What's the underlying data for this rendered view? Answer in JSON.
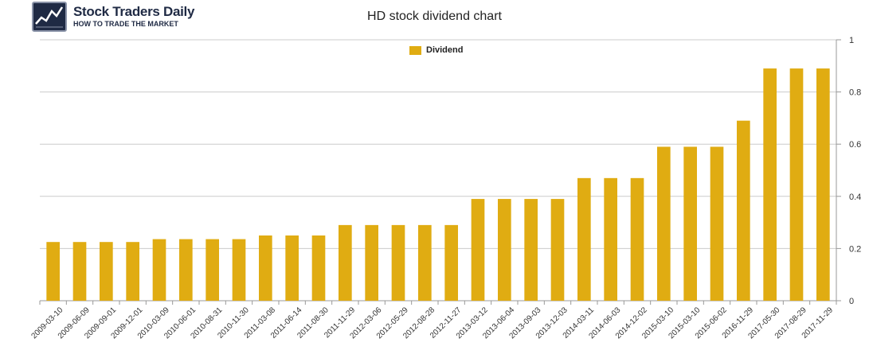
{
  "brand": {
    "name": "Stock Traders Daily",
    "tagline": "HOW TO TRADE THE MARKET"
  },
  "colors": {
    "bar": "#e0ac12",
    "grid": "#cccccc",
    "axis": "#999999"
  },
  "chart_data": {
    "type": "bar",
    "title": "HD stock dividend chart",
    "xlabel": "",
    "ylabel": "",
    "ylim": [
      0,
      1
    ],
    "yticks": [
      0,
      0.2,
      0.4,
      0.6,
      0.8,
      1
    ],
    "grid": true,
    "legend_position": "top-center",
    "categories": [
      "2009-03-10",
      "2009-06-09",
      "2009-09-01",
      "2009-12-01",
      "2010-03-09",
      "2010-06-01",
      "2010-08-31",
      "2010-11-30",
      "2011-03-08",
      "2011-06-14",
      "2011-08-30",
      "2011-11-29",
      "2012-03-06",
      "2012-05-29",
      "2012-08-28",
      "2012-11-27",
      "2013-03-12",
      "2013-06-04",
      "2013-09-03",
      "2013-12-03",
      "2014-03-11",
      "2014-06-03",
      "2014-12-02",
      "2015-03-10",
      "2015-03-10",
      "2015-06-02",
      "2016-11-29",
      "2017-05-30",
      "2017-08-29",
      "2017-11-29"
    ],
    "series": [
      {
        "name": "Dividend",
        "values": [
          0.225,
          0.225,
          0.225,
          0.225,
          0.236,
          0.236,
          0.236,
          0.236,
          0.25,
          0.25,
          0.25,
          0.29,
          0.29,
          0.29,
          0.29,
          0.29,
          0.39,
          0.39,
          0.39,
          0.39,
          0.47,
          0.47,
          0.47,
          0.59,
          0.59,
          0.59,
          0.69,
          0.89,
          0.89,
          0.89
        ]
      }
    ]
  }
}
